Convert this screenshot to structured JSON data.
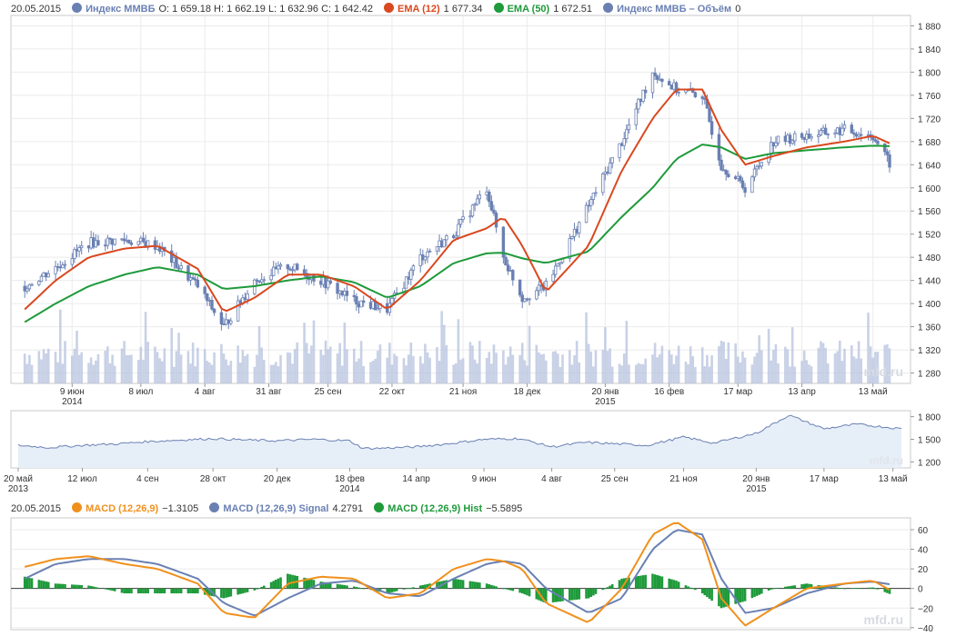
{
  "main_legend": {
    "date": "20.05.2015",
    "items": [
      {
        "name": "Индекс ММВБ",
        "color": "#6a80b3",
        "values": "O: 1 659.18  H: 1 662.19  L: 1 632.96  C: 1 642.42"
      },
      {
        "name": "EMA (12)",
        "color": "#d9481f",
        "values": "1 677.34"
      },
      {
        "name": "EMA (50)",
        "color": "#1e9a3a",
        "values": "1 672.51"
      },
      {
        "name": "Индекс ММВБ – Объём",
        "color": "#6a80b3",
        "values": "0"
      }
    ]
  },
  "macd_legend": {
    "date": "20.05.2015",
    "items": [
      {
        "name": "MACD (12,26,9)",
        "color": "#f0901c",
        "values": "−1.3105"
      },
      {
        "name": "MACD (12,26,9) Signal",
        "color": "#6a80b3",
        "values": "4.2791"
      },
      {
        "name": "MACD (12,26,9) Hist",
        "color": "#1e9a3a",
        "values": "−5.5895"
      }
    ]
  },
  "watermark": "mfd.ru",
  "chart_data": [
    {
      "type": "line",
      "title": "",
      "panel": "price",
      "x_labels": [
        {
          "label": "9 июн",
          "sub": "2014",
          "date": "2014-06-09"
        },
        {
          "label": "8 июл",
          "sub": "",
          "date": "2014-07-08"
        },
        {
          "label": "4 авг",
          "sub": "",
          "date": "2014-08-04"
        },
        {
          "label": "31 авг",
          "sub": "",
          "date": "2014-08-31"
        },
        {
          "label": "25 сен",
          "sub": "",
          "date": "2014-09-25"
        },
        {
          "label": "22 окт",
          "sub": "",
          "date": "2014-10-22"
        },
        {
          "label": "21 ноя",
          "sub": "",
          "date": "2014-11-21"
        },
        {
          "label": "18 дек",
          "sub": "",
          "date": "2014-12-18"
        },
        {
          "label": "20 янв",
          "sub": "2015",
          "date": "2015-01-20"
        },
        {
          "label": "16 фев",
          "sub": "",
          "date": "2015-02-16"
        },
        {
          "label": "17 мар",
          "sub": "",
          "date": "2015-03-17"
        },
        {
          "label": "13 апр",
          "sub": "",
          "date": "2015-04-13"
        },
        {
          "label": "13 май",
          "sub": "",
          "date": "2015-05-13"
        }
      ],
      "y_ticks": [
        1280,
        1320,
        1360,
        1400,
        1440,
        1480,
        1520,
        1560,
        1600,
        1640,
        1680,
        1720,
        1760,
        1800,
        1840,
        1880
      ],
      "y_tick_labels": [
        "1 280",
        "1 320",
        "1 360",
        "1 400",
        "1 440",
        "1 480",
        "1 520",
        "1 560",
        "1 600",
        "1 640",
        "1 680",
        "1 720",
        "1 760",
        "1 800",
        "1 840",
        "1 880"
      ],
      "ylim": [
        1262,
        1898
      ],
      "x": [
        "2014-05-20",
        "2014-06-02",
        "2014-06-16",
        "2014-07-01",
        "2014-07-15",
        "2014-08-01",
        "2014-08-12",
        "2014-08-25",
        "2014-09-08",
        "2014-09-22",
        "2014-10-06",
        "2014-10-20",
        "2014-11-03",
        "2014-11-17",
        "2014-12-01",
        "2014-12-08",
        "2014-12-16",
        "2014-12-26",
        "2015-01-13",
        "2015-01-27",
        "2015-02-09",
        "2015-02-19",
        "2015-03-02",
        "2015-03-10",
        "2015-03-20",
        "2015-04-01",
        "2015-04-15",
        "2015-05-01",
        "2015-05-13",
        "2015-05-20"
      ],
      "series": [
        {
          "name": "Индекс ММВБ",
          "color": "#6a80b3",
          "values": [
            1430,
            1462,
            1505,
            1510,
            1500,
            1430,
            1360,
            1440,
            1465,
            1440,
            1405,
            1390,
            1480,
            1520,
            1600,
            1480,
            1410,
            1430,
            1570,
            1680,
            1800,
            1770,
            1760,
            1640,
            1600,
            1680,
            1690,
            1700,
            1690,
            1642
          ]
        },
        {
          "name": "EMA (12)",
          "color": "#d9481f",
          "values": [
            1390,
            1440,
            1480,
            1495,
            1500,
            1460,
            1385,
            1410,
            1450,
            1450,
            1430,
            1390,
            1440,
            1510,
            1530,
            1550,
            1500,
            1420,
            1500,
            1630,
            1720,
            1770,
            1770,
            1700,
            1640,
            1655,
            1670,
            1680,
            1690,
            1677
          ]
        },
        {
          "name": "EMA (50)",
          "color": "#1e9a3a",
          "values": [
            1368,
            1400,
            1430,
            1450,
            1463,
            1450,
            1425,
            1430,
            1440,
            1447,
            1437,
            1410,
            1430,
            1470,
            1487,
            1488,
            1478,
            1470,
            1490,
            1550,
            1600,
            1650,
            1675,
            1670,
            1650,
            1660,
            1665,
            1670,
            1673,
            1672
          ]
        }
      ],
      "volume_series": {
        "name": "Индекс ММВБ – Объём",
        "color": "#b6c2de",
        "max_label": ""
      }
    },
    {
      "type": "area",
      "panel": "navigator",
      "x_labels": [
        {
          "label": "20 май",
          "sub": "2013",
          "date": "2013-05-20"
        },
        {
          "label": "12 июл",
          "sub": "",
          "date": "2013-07-12"
        },
        {
          "label": "4 сен",
          "sub": "",
          "date": "2013-09-04"
        },
        {
          "label": "28 окт",
          "sub": "",
          "date": "2013-10-28"
        },
        {
          "label": "20 дек",
          "sub": "",
          "date": "2013-12-20"
        },
        {
          "label": "18 фев",
          "sub": "2014",
          "date": "2014-02-18"
        },
        {
          "label": "14 апр",
          "sub": "",
          "date": "2014-04-14"
        },
        {
          "label": "9 июн",
          "sub": "",
          "date": "2014-06-09"
        },
        {
          "label": "4 авг",
          "sub": "",
          "date": "2014-08-04"
        },
        {
          "label": "25 сен",
          "sub": "",
          "date": "2014-09-25"
        },
        {
          "label": "21 ноя",
          "sub": "",
          "date": "2014-11-21"
        },
        {
          "label": "20 янв",
          "sub": "2015",
          "date": "2015-01-20"
        },
        {
          "label": "17 мар",
          "sub": "",
          "date": "2015-03-17"
        },
        {
          "label": "13 май",
          "sub": "",
          "date": "2015-05-13"
        }
      ],
      "y_ticks": [
        1200,
        1500,
        1800
      ],
      "y_tick_labels": [
        "1 200",
        "1 500",
        "1 800"
      ],
      "ylim": [
        1120,
        1880
      ],
      "x": [
        "2013-05-20",
        "2013-06-15",
        "2013-07-12",
        "2013-08-10",
        "2013-09-04",
        "2013-10-01",
        "2013-10-28",
        "2013-11-25",
        "2013-12-20",
        "2014-01-20",
        "2014-02-18",
        "2014-03-01",
        "2014-03-14",
        "2014-04-14",
        "2014-05-10",
        "2014-06-09",
        "2014-07-08",
        "2014-08-04",
        "2014-09-01",
        "2014-09-25",
        "2014-10-22",
        "2014-11-21",
        "2014-12-16",
        "2015-01-20",
        "2015-02-16",
        "2015-03-17",
        "2015-04-13",
        "2015-05-20"
      ],
      "values": [
        1420,
        1390,
        1420,
        1440,
        1470,
        1490,
        1510,
        1490,
        1480,
        1500,
        1480,
        1380,
        1380,
        1400,
        1440,
        1500,
        1510,
        1400,
        1460,
        1440,
        1420,
        1530,
        1450,
        1580,
        1820,
        1640,
        1700,
        1640
      ]
    },
    {
      "type": "bar",
      "panel": "macd",
      "y_ticks": [
        -40,
        -20,
        0,
        20,
        40,
        60
      ],
      "y_tick_labels": [
        "−40",
        "−20",
        "0",
        "20",
        "40",
        "60"
      ],
      "ylim": [
        -42,
        72
      ],
      "x": [
        "2014-05-20",
        "2014-06-02",
        "2014-06-16",
        "2014-07-01",
        "2014-07-15",
        "2014-08-01",
        "2014-08-12",
        "2014-08-25",
        "2014-09-08",
        "2014-09-22",
        "2014-10-06",
        "2014-10-20",
        "2014-11-03",
        "2014-11-17",
        "2014-12-01",
        "2014-12-08",
        "2014-12-16",
        "2014-12-26",
        "2015-01-13",
        "2015-01-27",
        "2015-02-09",
        "2015-02-19",
        "2015-03-02",
        "2015-03-10",
        "2015-03-20",
        "2015-04-01",
        "2015-04-15",
        "2015-05-01",
        "2015-05-13",
        "2015-05-20"
      ],
      "series": [
        {
          "name": "MACD (12,26,9)",
          "color": "#f0901c",
          "values": [
            22,
            30,
            33,
            25,
            20,
            5,
            -25,
            -30,
            5,
            12,
            10,
            -10,
            -5,
            20,
            30,
            28,
            20,
            -15,
            -35,
            0,
            55,
            68,
            50,
            -10,
            -38,
            -20,
            0,
            5,
            8,
            -1.3
          ]
        },
        {
          "name": "MACD (12,26,9) Signal",
          "color": "#6a80b3",
          "values": [
            10,
            25,
            30,
            30,
            25,
            10,
            -15,
            -28,
            -10,
            5,
            8,
            -5,
            -8,
            10,
            25,
            28,
            25,
            0,
            -25,
            -10,
            40,
            60,
            55,
            10,
            -25,
            -20,
            -5,
            5,
            7,
            4.3
          ]
        },
        {
          "name": "MACD (12,26,9) Hist",
          "color": "#1e9a3a",
          "values": [
            12,
            5,
            3,
            -5,
            -5,
            -5,
            -10,
            -2,
            15,
            7,
            2,
            -5,
            3,
            10,
            5,
            0,
            -5,
            -15,
            -10,
            10,
            15,
            8,
            -5,
            -20,
            -13,
            0,
            5,
            0,
            1,
            -5.6
          ]
        }
      ]
    }
  ]
}
